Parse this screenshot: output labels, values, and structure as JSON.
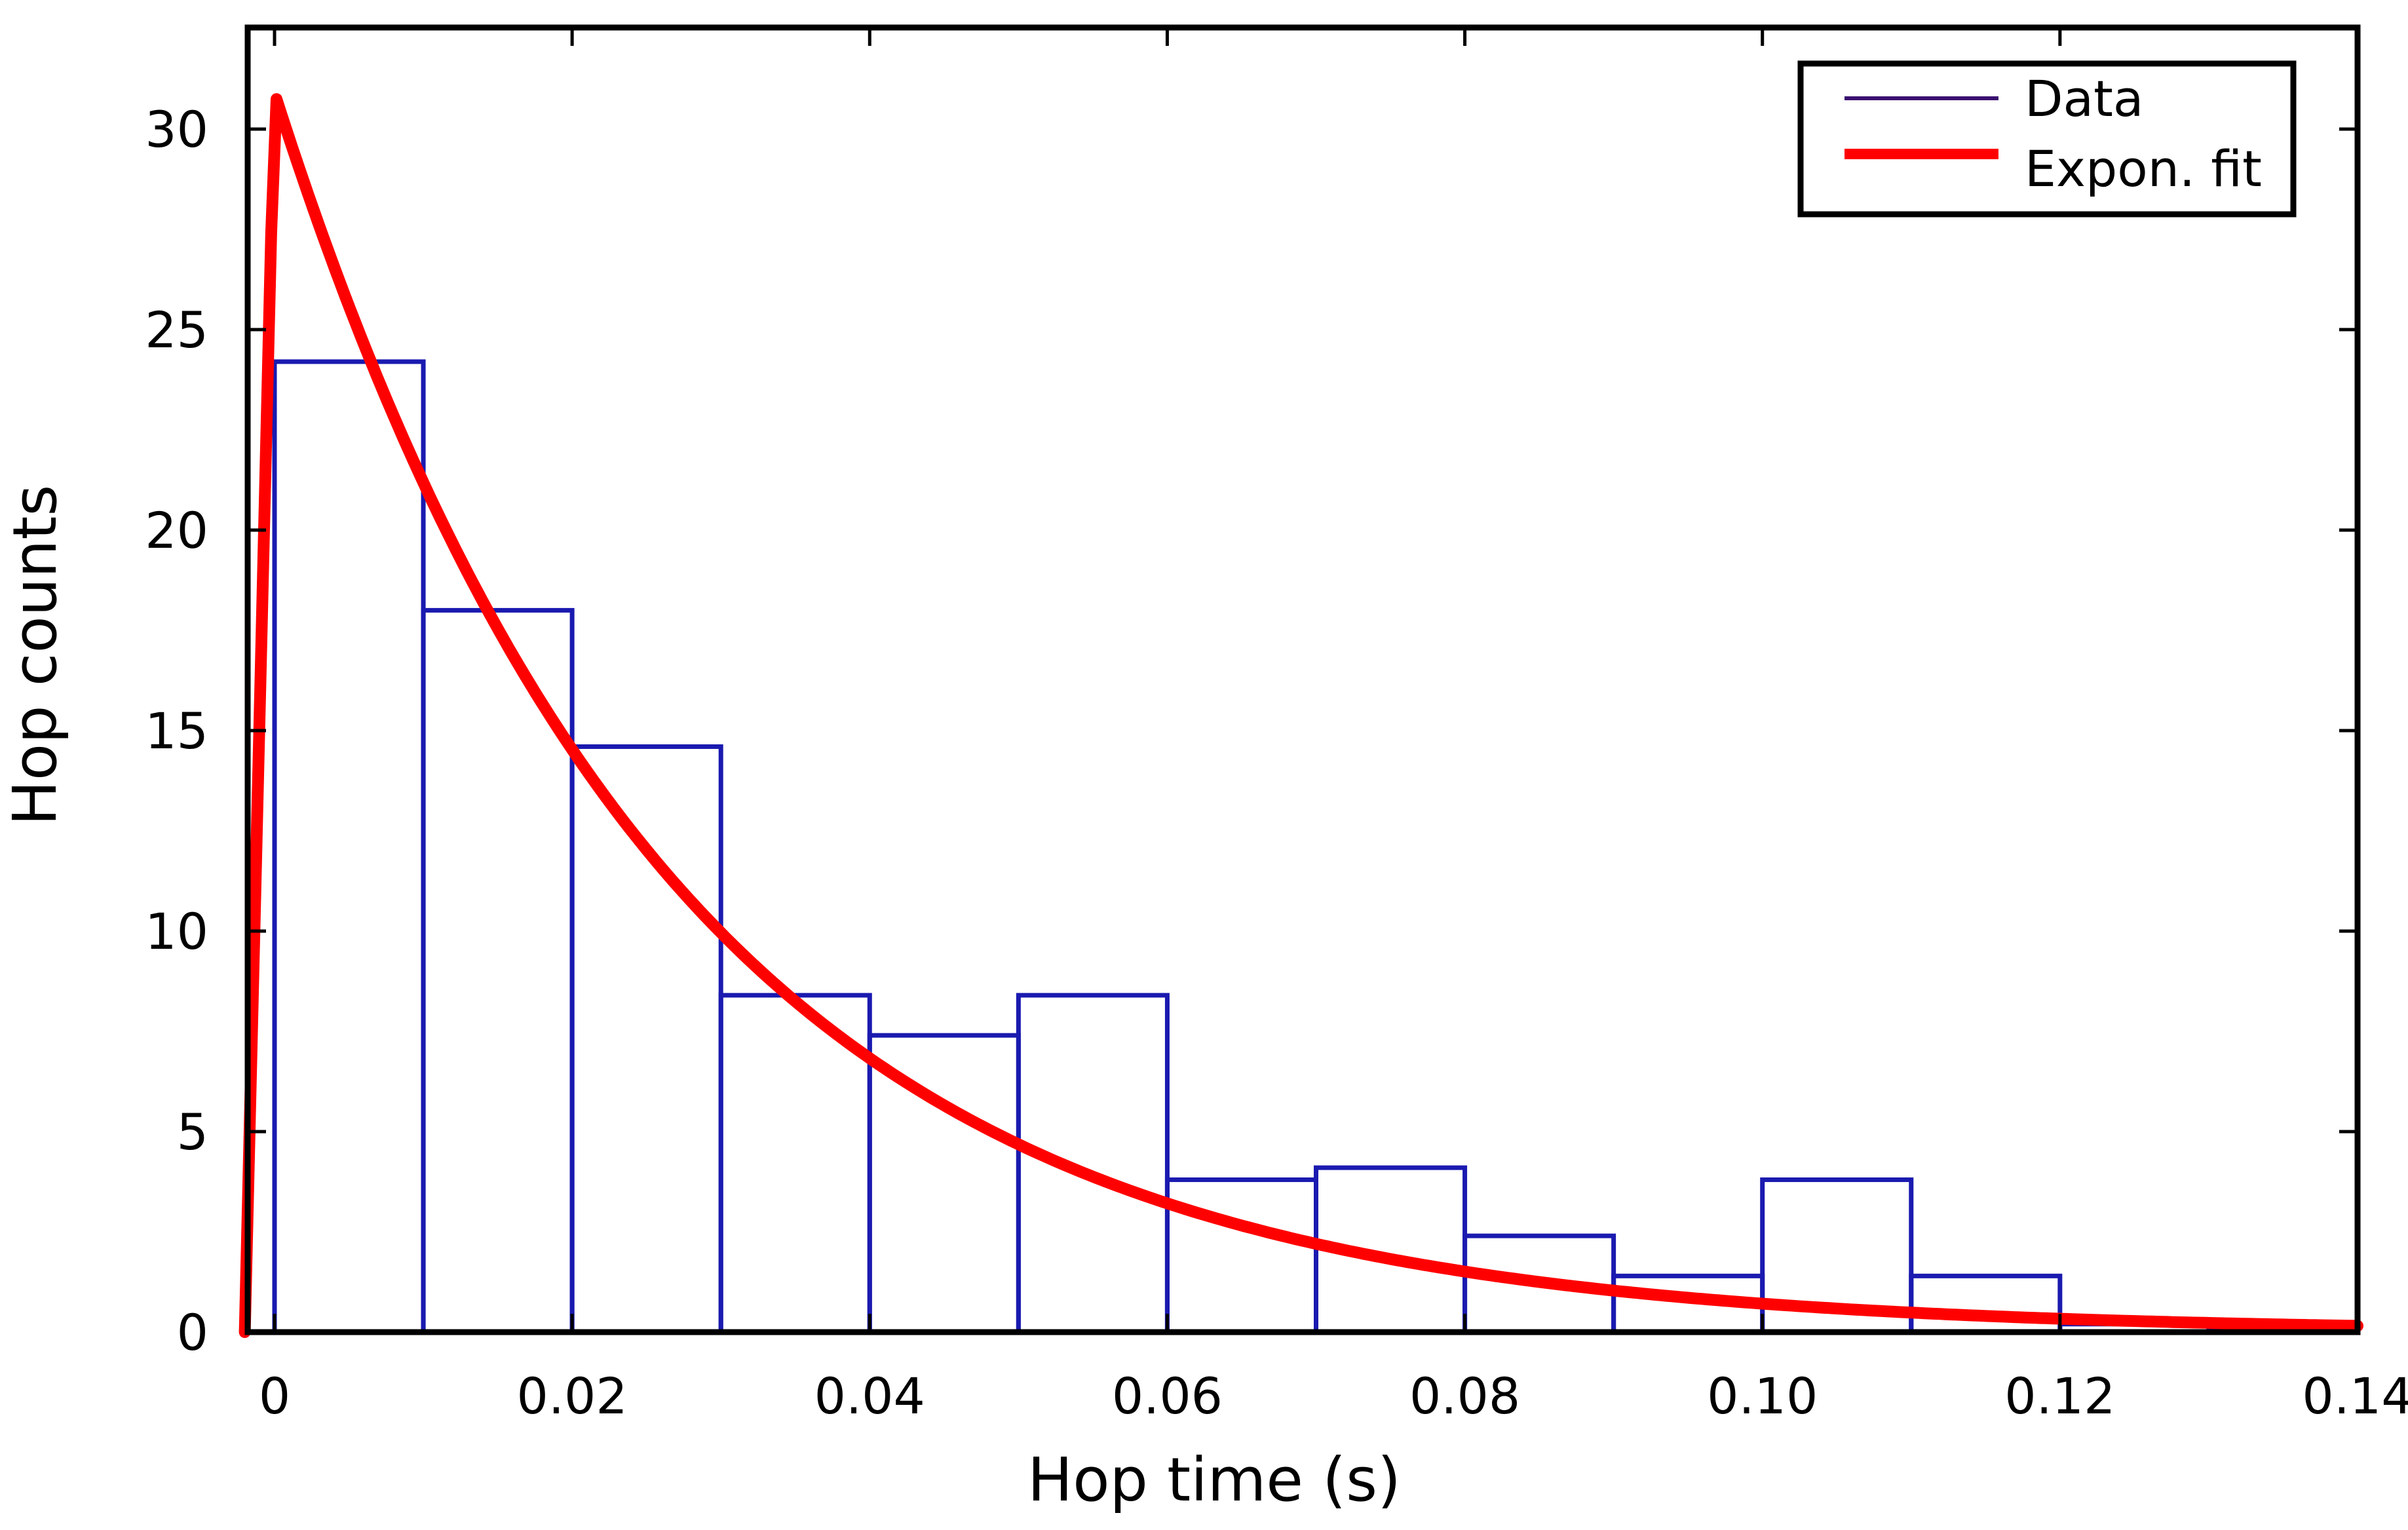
{
  "chart_data": {
    "type": "bar",
    "title": "",
    "xlabel": "Hop time (s)",
    "ylabel": "Hop counts",
    "xlim": [
      -0.002,
      0.14
    ],
    "ylim": [
      0,
      32.5
    ],
    "grid": false,
    "legend_position": "top-right",
    "x_ticks": [
      {
        "value": 0,
        "label": "0"
      },
      {
        "value": 0.02,
        "label": "0.02"
      },
      {
        "value": 0.04,
        "label": "0.04"
      },
      {
        "value": 0.06,
        "label": "0.06"
      },
      {
        "value": 0.08,
        "label": "0.08"
      },
      {
        "value": 0.1,
        "label": "0.10"
      },
      {
        "value": 0.12,
        "label": "0.12"
      },
      {
        "value": 0.14,
        "label": "0.14"
      }
    ],
    "y_ticks": [
      {
        "value": 0,
        "label": "0"
      },
      {
        "value": 5,
        "label": "5"
      },
      {
        "value": 10,
        "label": "10"
      },
      {
        "value": 15,
        "label": "15"
      },
      {
        "value": 20,
        "label": "20"
      },
      {
        "value": 25,
        "label": "25"
      },
      {
        "value": 30,
        "label": "30"
      }
    ],
    "histogram": {
      "name": "Data",
      "color": "#1a1ab0",
      "bins": [
        {
          "start": 0.0,
          "end": 0.01,
          "count": 24.2
        },
        {
          "start": 0.01,
          "end": 0.02,
          "count": 18.0
        },
        {
          "start": 0.02,
          "end": 0.03,
          "count": 14.6
        },
        {
          "start": 0.03,
          "end": 0.04,
          "count": 8.4
        },
        {
          "start": 0.04,
          "end": 0.05,
          "count": 7.4
        },
        {
          "start": 0.05,
          "end": 0.06,
          "count": 8.4
        },
        {
          "start": 0.06,
          "end": 0.07,
          "count": 3.8
        },
        {
          "start": 0.07,
          "end": 0.08,
          "count": 4.1
        },
        {
          "start": 0.08,
          "end": 0.09,
          "count": 2.4
        },
        {
          "start": 0.09,
          "end": 0.1,
          "count": 1.4
        },
        {
          "start": 0.1,
          "end": 0.11,
          "count": 3.8
        },
        {
          "start": 0.11,
          "end": 0.12,
          "count": 1.4
        },
        {
          "start": 0.12,
          "end": 0.13,
          "count": 0.2
        },
        {
          "start": 0.13,
          "end": 0.14,
          "count": 0.1
        }
      ]
    },
    "fit": {
      "name": "Expon. fit",
      "color": "#ff0000",
      "peak_x": 0.0,
      "peak_y": 30.9,
      "decay_constant_s": 0.0265,
      "x_start": -0.002,
      "x_end": 0.14
    },
    "legend": [
      {
        "label": "Data",
        "color": "#3a1070"
      },
      {
        "label": "Expon. fit",
        "color": "#ff0000"
      }
    ]
  }
}
